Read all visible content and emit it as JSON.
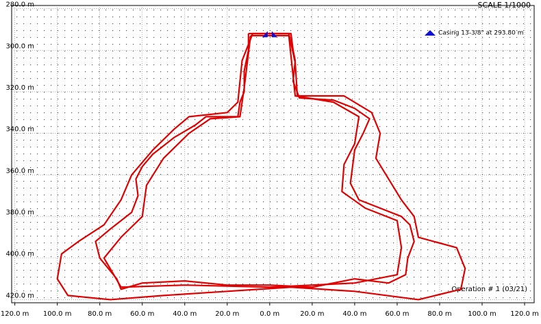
{
  "chart_data": {
    "type": "line",
    "scale_label": "SCALE 1/1000",
    "annotation": "Casing 13-3/8\" at 293.80 m",
    "footer_label": "Operation # 1 (03/21)",
    "casing_depth": 293.8,
    "casing_color": "#1010d0",
    "y_inverted": true,
    "grid": true,
    "xlim": [
      -121.5,
      124.5
    ],
    "ylim": [
      278.5,
      421.5
    ],
    "xticks": [
      {
        "value": -120,
        "label": "120.0 m"
      },
      {
        "value": -100,
        "label": "100.0 m"
      },
      {
        "value": -80,
        "label": "80.0 m"
      },
      {
        "value": -60,
        "label": "60.0 m"
      },
      {
        "value": -40,
        "label": "40.0 m"
      },
      {
        "value": -20,
        "label": "20.0 m"
      },
      {
        "value": 0,
        "label": "0.0 m"
      },
      {
        "value": 20,
        "label": "20.0 m"
      },
      {
        "value": 40,
        "label": "40.0 m"
      },
      {
        "value": 60,
        "label": "60.0 m"
      },
      {
        "value": 80,
        "label": "80.0 m"
      },
      {
        "value": 100,
        "label": "100.0 m"
      },
      {
        "value": 120,
        "label": "120.0 m"
      }
    ],
    "yticks": [
      {
        "value": 280,
        "label": "280.0 m"
      },
      {
        "value": 300,
        "label": "300.0 m"
      },
      {
        "value": 320,
        "label": "320.0 m"
      },
      {
        "value": 340,
        "label": "340.0 m"
      },
      {
        "value": 360,
        "label": "360.0 m"
      },
      {
        "value": 380,
        "label": "380.0 m"
      },
      {
        "value": 400,
        "label": "400.0 m"
      },
      {
        "value": 420,
        "label": "420.0 m"
      }
    ],
    "series": [
      {
        "color": "#e00000",
        "x": [
          -8,
          9,
          12,
          13,
          35,
          48,
          52,
          50,
          56,
          62,
          68,
          70,
          88,
          92,
          90,
          70,
          40,
          10,
          -20,
          -50,
          -75,
          -95,
          -100,
          -98,
          -90,
          -78,
          -70,
          -65,
          -55,
          -45,
          -38,
          -20,
          -15,
          -13,
          -8
        ],
        "values": [
          292,
          292,
          306,
          322,
          322,
          330,
          340,
          352,
          362,
          372,
          380,
          390,
          395,
          405,
          415,
          420,
          416,
          414,
          416,
          418,
          420,
          418,
          410,
          398,
          392,
          384,
          372,
          360,
          348,
          338,
          332,
          330,
          325,
          305,
          292
        ]
      },
      {
        "color": "#e00000",
        "x": [
          -10,
          10,
          11,
          12,
          11,
          14,
          30,
          40,
          47,
          44,
          40,
          39,
          38,
          42,
          52,
          62,
          66,
          68,
          65,
          64,
          56,
          40,
          20,
          0,
          -20,
          -40,
          -60,
          -70,
          -72,
          -80,
          -82,
          -75,
          -65,
          -62,
          -63,
          -60,
          -55,
          -45,
          -35,
          -30,
          -15,
          -14,
          -12,
          -12,
          -10,
          -10
        ],
        "values": [
          292,
          292,
          300,
          305,
          315,
          323,
          324,
          328,
          333,
          340,
          348,
          356,
          364,
          372,
          376,
          380,
          384,
          392,
          400,
          408,
          412,
          410,
          414,
          413,
          413,
          411,
          412,
          415,
          410,
          400,
          392,
          386,
          378,
          370,
          362,
          356,
          350,
          342,
          336,
          332,
          332,
          325,
          320,
          310,
          300,
          292
        ]
      },
      {
        "color": "#e00000",
        "x": [
          -9,
          9,
          12,
          30,
          42,
          40,
          35,
          34,
          45,
          60,
          62,
          60,
          40,
          0,
          -40,
          -70,
          -78,
          -70,
          -60,
          -58,
          -50,
          -38,
          -28,
          -14,
          -12,
          -9
        ],
        "values": [
          293,
          293,
          322,
          325,
          332,
          345,
          355,
          368,
          376,
          382,
          395,
          408,
          412,
          414,
          413,
          414,
          400,
          390,
          380,
          365,
          352,
          340,
          333,
          332,
          318,
          293
        ]
      }
    ]
  }
}
